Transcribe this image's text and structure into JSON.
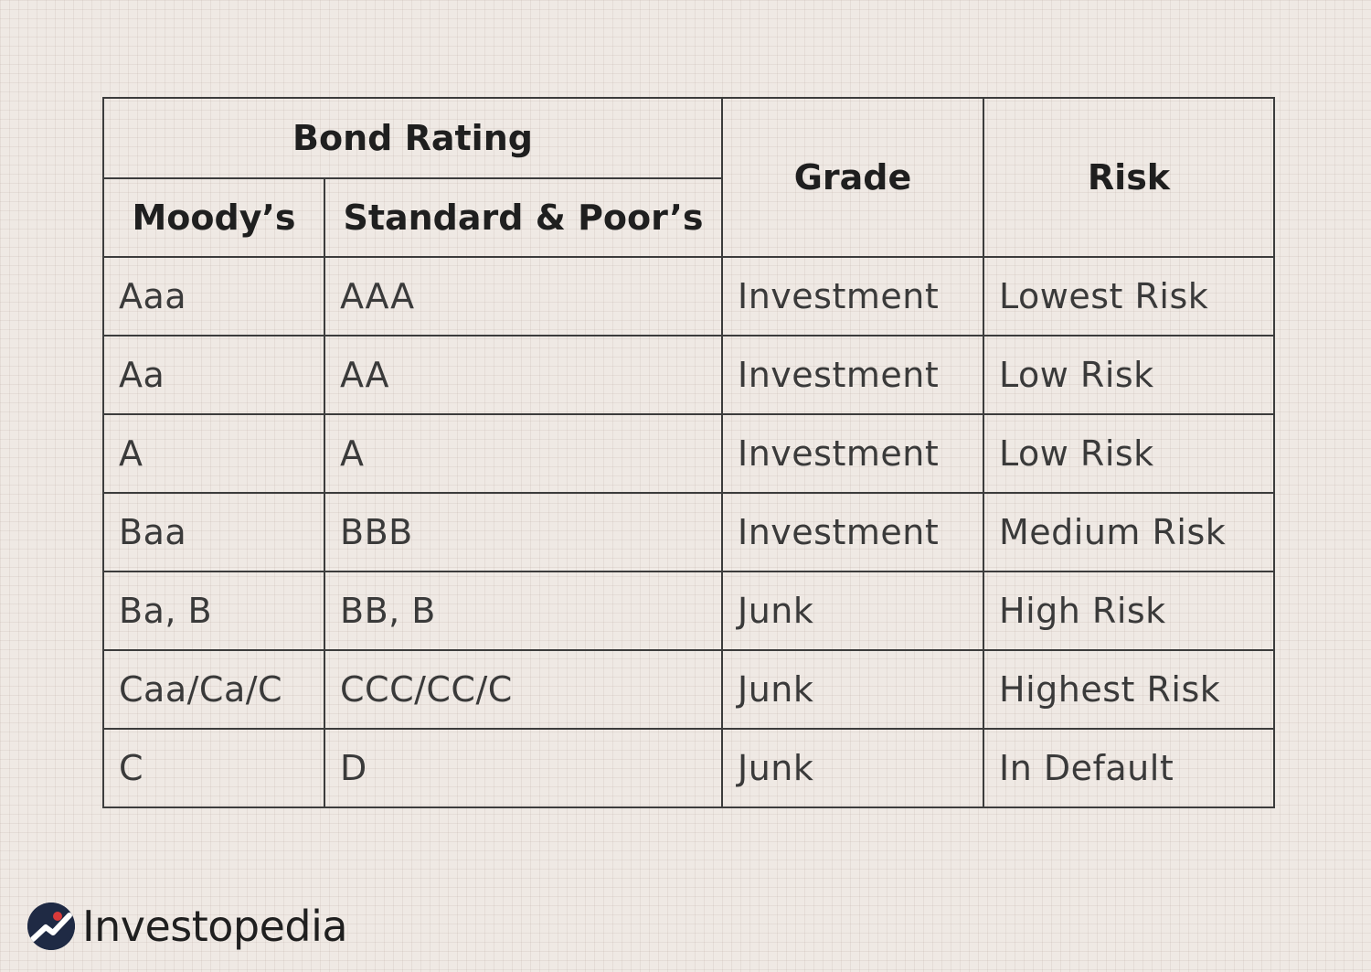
{
  "table": {
    "header": {
      "bond_rating": "Bond Rating",
      "moodys": "Moody’s",
      "sp": "Standard & Poor’s",
      "grade": "Grade",
      "risk": "Risk"
    },
    "rows": [
      {
        "moodys": "Aaa",
        "sp": "AAA",
        "grade": "Investment",
        "risk": "Lowest Risk"
      },
      {
        "moodys": "Aa",
        "sp": "AA",
        "grade": "Investment",
        "risk": "Low Risk"
      },
      {
        "moodys": "A",
        "sp": "A",
        "grade": "Investment",
        "risk": "Low Risk"
      },
      {
        "moodys": "Baa",
        "sp": "BBB",
        "grade": "Investment",
        "risk": "Medium Risk"
      },
      {
        "moodys": "Ba, B",
        "sp": "BB, B",
        "grade": "Junk",
        "risk": "High Risk"
      },
      {
        "moodys": "Caa/Ca/C",
        "sp": "CCC/CC/C",
        "grade": "Junk",
        "risk": "Highest Risk"
      },
      {
        "moodys": "C",
        "sp": "D",
        "grade": "Junk",
        "risk": "In Default"
      }
    ]
  },
  "logo": {
    "text": "Investopedia",
    "icon": "investopedia-logo-icon",
    "brand_color": "#1f2a44",
    "accent_color": "#d93a3a"
  }
}
